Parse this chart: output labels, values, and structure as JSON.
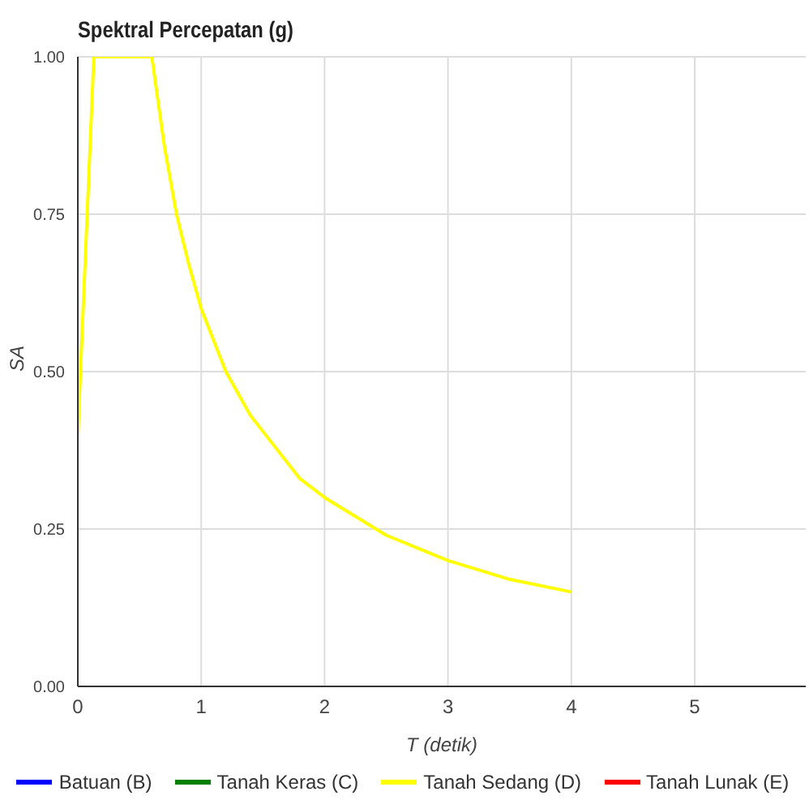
{
  "chart_data": {
    "type": "line",
    "title": "Spektral Percepatan (g)",
    "xlabel": "T (detik)",
    "ylabel": "SA",
    "series": [
      {
        "name": "Batuan (B)",
        "color": "#0000ff"
      },
      {
        "name": "Tanah Keras (C)",
        "color": "#008000"
      },
      {
        "name": "Tanah Sedang (D)",
        "color": "#ffff00",
        "x": [
          0,
          0.13,
          0.6,
          0.7,
          0.8,
          0.9,
          1,
          1.2,
          1.4,
          1.6,
          1.8,
          2,
          2.5,
          3,
          3.5,
          4
        ],
        "values": [
          0.4,
          1,
          1,
          0.86,
          0.75,
          0.67,
          0.6,
          0.5,
          0.43,
          0.38,
          0.33,
          0.3,
          0.24,
          0.2,
          0.17,
          0.15
        ]
      },
      {
        "name": "Tanah Lunak (E)",
        "color": "#ff0000"
      }
    ],
    "xlim": [
      0,
      5.9
    ],
    "xticks": [
      0,
      1,
      2,
      3,
      4,
      5
    ],
    "ylim": [
      0,
      1
    ],
    "yticks": [
      {
        "value": 0,
        "label": "0.00"
      },
      {
        "value": 0.25,
        "label": "0.25"
      },
      {
        "value": 0.5,
        "label": "0.50"
      },
      {
        "value": 0.75,
        "label": "0.75"
      },
      {
        "value": 1,
        "label": "1.00"
      }
    ],
    "grid": true,
    "legend": "bottom",
    "marker": "none",
    "line_style": "solid"
  }
}
